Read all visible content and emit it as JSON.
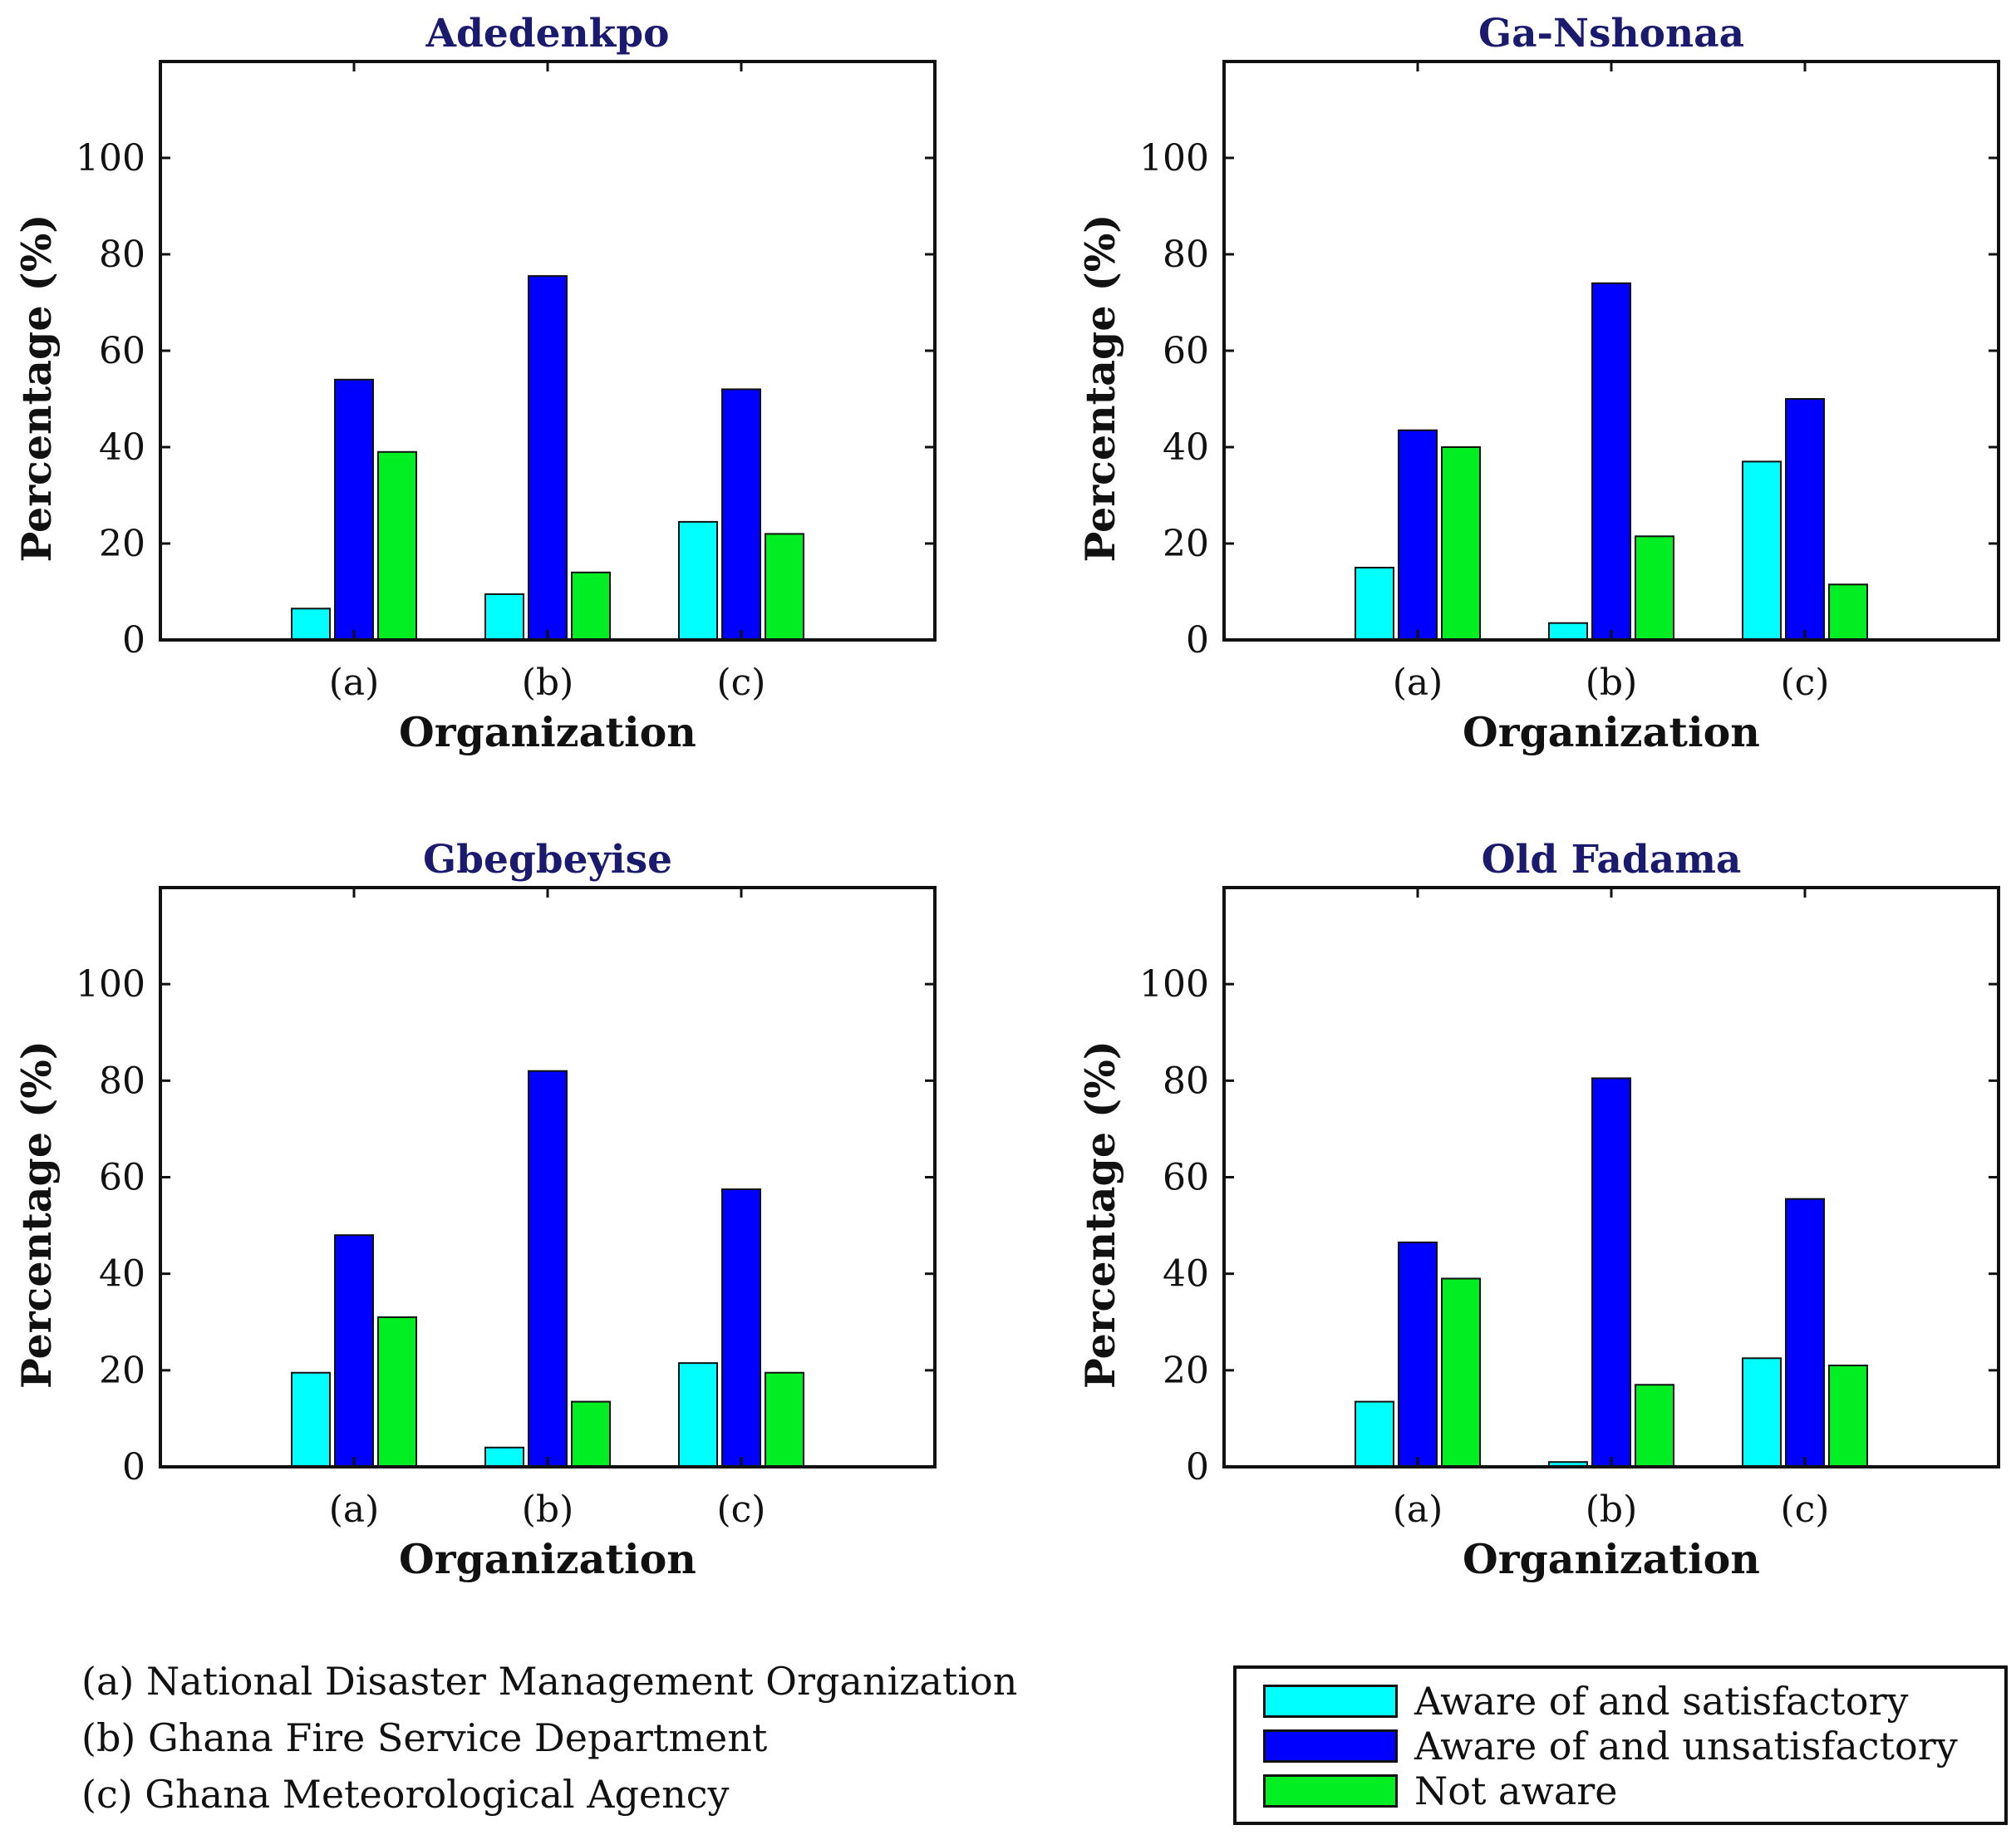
{
  "chart_data": [
    {
      "type": "bar",
      "title": "Adedenkpo",
      "xlabel": "Organization",
      "ylabel": "Percentage (%)",
      "categories": [
        "(a)",
        "(b)",
        "(c)"
      ],
      "ylim": [
        0,
        120
      ],
      "yticks": [
        0,
        20,
        40,
        60,
        80,
        100
      ],
      "series": [
        {
          "name": "Aware of and satisfactory",
          "values": [
            6.5,
            9.5,
            24.5
          ]
        },
        {
          "name": "Aware of and unsatisfactory",
          "values": [
            54,
            75.5,
            52
          ]
        },
        {
          "name": "Not aware",
          "values": [
            39,
            14,
            22
          ]
        }
      ]
    },
    {
      "type": "bar",
      "title": "Ga-Nshonaa",
      "xlabel": "Organization",
      "ylabel": "Percentage (%)",
      "categories": [
        "(a)",
        "(b)",
        "(c)"
      ],
      "ylim": [
        0,
        120
      ],
      "yticks": [
        0,
        20,
        40,
        60,
        80,
        100
      ],
      "series": [
        {
          "name": "Aware of and satisfactory",
          "values": [
            15,
            3.5,
            37
          ]
        },
        {
          "name": "Aware of and unsatisfactory",
          "values": [
            43.5,
            74,
            50
          ]
        },
        {
          "name": "Not aware",
          "values": [
            40,
            21.5,
            11.5
          ]
        }
      ]
    },
    {
      "type": "bar",
      "title": "Gbegbeyise",
      "xlabel": "Organization",
      "ylabel": "Percentage (%)",
      "categories": [
        "(a)",
        "(b)",
        "(c)"
      ],
      "ylim": [
        0,
        120
      ],
      "yticks": [
        0,
        20,
        40,
        60,
        80,
        100
      ],
      "series": [
        {
          "name": "Aware of and satisfactory",
          "values": [
            19.5,
            4,
            21.5
          ]
        },
        {
          "name": "Aware of and unsatisfactory",
          "values": [
            48,
            82,
            57.5
          ]
        },
        {
          "name": "Not aware",
          "values": [
            31,
            13.5,
            19.5
          ]
        }
      ]
    },
    {
      "type": "bar",
      "title": "Old Fadama",
      "xlabel": "Organization",
      "ylabel": "Percentage (%)",
      "categories": [
        "(a)",
        "(b)",
        "(c)"
      ],
      "ylim": [
        0,
        120
      ],
      "yticks": [
        0,
        20,
        40,
        60,
        80,
        100
      ],
      "series": [
        {
          "name": "Aware of and satisfactory",
          "values": [
            13.5,
            1,
            22.5
          ]
        },
        {
          "name": "Aware of and unsatisfactory",
          "values": [
            46.5,
            80.5,
            55.5
          ]
        },
        {
          "name": "Not aware",
          "values": [
            39,
            17,
            21
          ]
        }
      ]
    }
  ],
  "colors": [
    "#00ffff",
    "#0000ff",
    "#00ee22"
  ],
  "legend": {
    "items": [
      "Aware of and satisfactory",
      "Aware of and unsatisfactory",
      "Not aware"
    ],
    "placement": "bottom-right"
  },
  "notes": [
    "(a) National Disaster Management Organization",
    "(b) Ghana Fire Service Department",
    "(c) Ghana Meteorological Agency"
  ]
}
